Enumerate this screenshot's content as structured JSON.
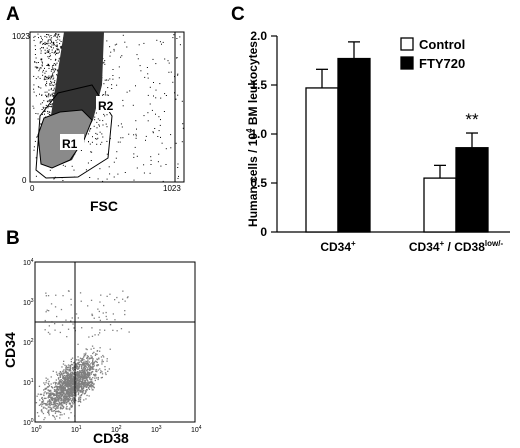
{
  "panels": {
    "a": {
      "letter": "A",
      "xlabel": "FSC",
      "ylabel": "SSC",
      "ticks": {
        "x_zero": "0",
        "x_max": "1023",
        "y_zero": "0",
        "y_max": "1023"
      },
      "gates": {
        "r1": "R1",
        "r2": "R2"
      }
    },
    "b": {
      "letter": "B",
      "xlabel": "CD38",
      "ylabel": "CD34",
      "decade_ticks": [
        {
          "base": "10",
          "exp": "0"
        },
        {
          "base": "10",
          "exp": "1"
        },
        {
          "base": "10",
          "exp": "2"
        },
        {
          "base": "10",
          "exp": "3"
        },
        {
          "base": "10",
          "exp": "4"
        }
      ]
    },
    "c": {
      "letter": "C"
    }
  },
  "chart_data": [
    {
      "type": "scatter",
      "panel": "A",
      "xlabel": "FSC",
      "ylabel": "SSC",
      "xlim": [
        0,
        1023
      ],
      "ylim": [
        0,
        1023
      ],
      "regions": [
        "R1",
        "R2"
      ],
      "colors": {
        "dots": "#000000",
        "r1_fill": "#8a8a8a",
        "dense": "#333333"
      }
    },
    {
      "type": "scatter",
      "panel": "B",
      "xlabel": "CD38",
      "ylabel": "CD34",
      "x_scale": "log",
      "y_scale": "log",
      "xlim": [
        1,
        10000
      ],
      "ylim": [
        1,
        10000
      ],
      "quadrant_x": 10,
      "quadrant_y": 200,
      "colors": {
        "dots": "#7f7f7f"
      }
    },
    {
      "type": "bar",
      "panel": "C",
      "categories": [
        {
          "main": "CD34",
          "sup1": "+",
          "mid": "",
          "sup2": ""
        },
        {
          "main": "CD34",
          "sup1": "+",
          "mid": " / CD38",
          "sup2": "low/-"
        }
      ],
      "series": [
        {
          "name": "Control",
          "values": [
            1.47,
            0.55
          ],
          "errors": [
            0.19,
            0.13
          ],
          "color": "#ffffff"
        },
        {
          "name": "FTY720",
          "values": [
            1.77,
            0.86
          ],
          "errors": [
            0.17,
            0.15
          ],
          "color": "#000000"
        }
      ],
      "ylabel": {
        "pre": "Human cells / 10",
        "sup": "4",
        "post": " BM leukocytes"
      },
      "ylim": [
        0,
        2.0
      ],
      "yticks": [
        "0",
        "0.5",
        "1.0",
        "1.5",
        "2.0"
      ],
      "ytick_values": [
        0,
        0.5,
        1.0,
        1.5,
        2.0
      ],
      "annotation": "**",
      "legend_position": "top-right",
      "grid": false
    }
  ]
}
